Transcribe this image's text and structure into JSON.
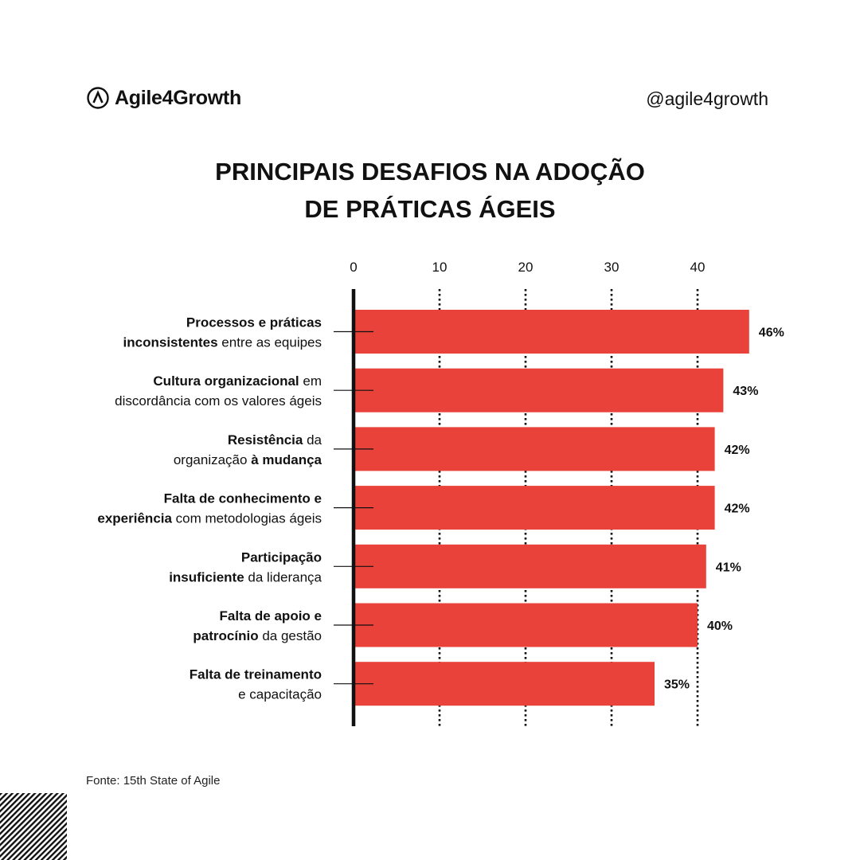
{
  "brand": {
    "name": "Agile4Growth",
    "handle": "@agile4growth",
    "logo_icon": "lambda-circle-icon"
  },
  "title_lines": [
    "PRINCIPAIS DESAFIOS NA ADOÇÃO",
    "DE PRÁTICAS ÁGEIS"
  ],
  "source": "Fonte: 15th State of Agile",
  "colors": {
    "bar": "#e8423a",
    "text": "#111111",
    "axis": "#111111"
  },
  "chart_data": {
    "type": "bar",
    "orientation": "horizontal",
    "title": "PRINCIPAIS DESAFIOS NA ADOÇÃO DE PRÁTICAS ÁGEIS",
    "xlabel": "",
    "ylabel": "",
    "x_ticks": [
      0,
      10,
      20,
      30,
      40
    ],
    "xlim": [
      0,
      50
    ],
    "grid": "dotted vertical",
    "data_label_suffix": "%",
    "categories": [
      [
        {
          "t": "Processos e práticas ",
          "b": true
        },
        {
          "t": "inconsistentes",
          "b": true
        },
        {
          "t": " entre as equipes",
          "b": false
        }
      ],
      [
        {
          "t": "Cultura organizacional",
          "b": true
        },
        {
          "t": " em ",
          "b": false
        },
        {
          "t": "discordância com os valores ágeis",
          "b": false
        }
      ],
      [
        {
          "t": "Resistência",
          "b": true
        },
        {
          "t": " da ",
          "b": false
        },
        {
          "t": "organização ",
          "b": false
        },
        {
          "t": "à mudança",
          "b": true
        }
      ],
      [
        {
          "t": "Falta de conhecimento e ",
          "b": true
        },
        {
          "t": "experiência",
          "b": true
        },
        {
          "t": " com metodologias ágeis",
          "b": false
        }
      ],
      [
        {
          "t": "Participação ",
          "b": true
        },
        {
          "t": "insuficiente",
          "b": true
        },
        {
          "t": " da liderança",
          "b": false
        }
      ],
      [
        {
          "t": "Falta de apoio e ",
          "b": true
        },
        {
          "t": "patrocínio",
          "b": true
        },
        {
          "t": " da gestão",
          "b": false
        }
      ],
      [
        {
          "t": "Falta de treinamento ",
          "b": true
        },
        {
          "t": "e capacitação",
          "b": false
        }
      ]
    ],
    "values": [
      46,
      43,
      42,
      42,
      41,
      40,
      35
    ]
  }
}
